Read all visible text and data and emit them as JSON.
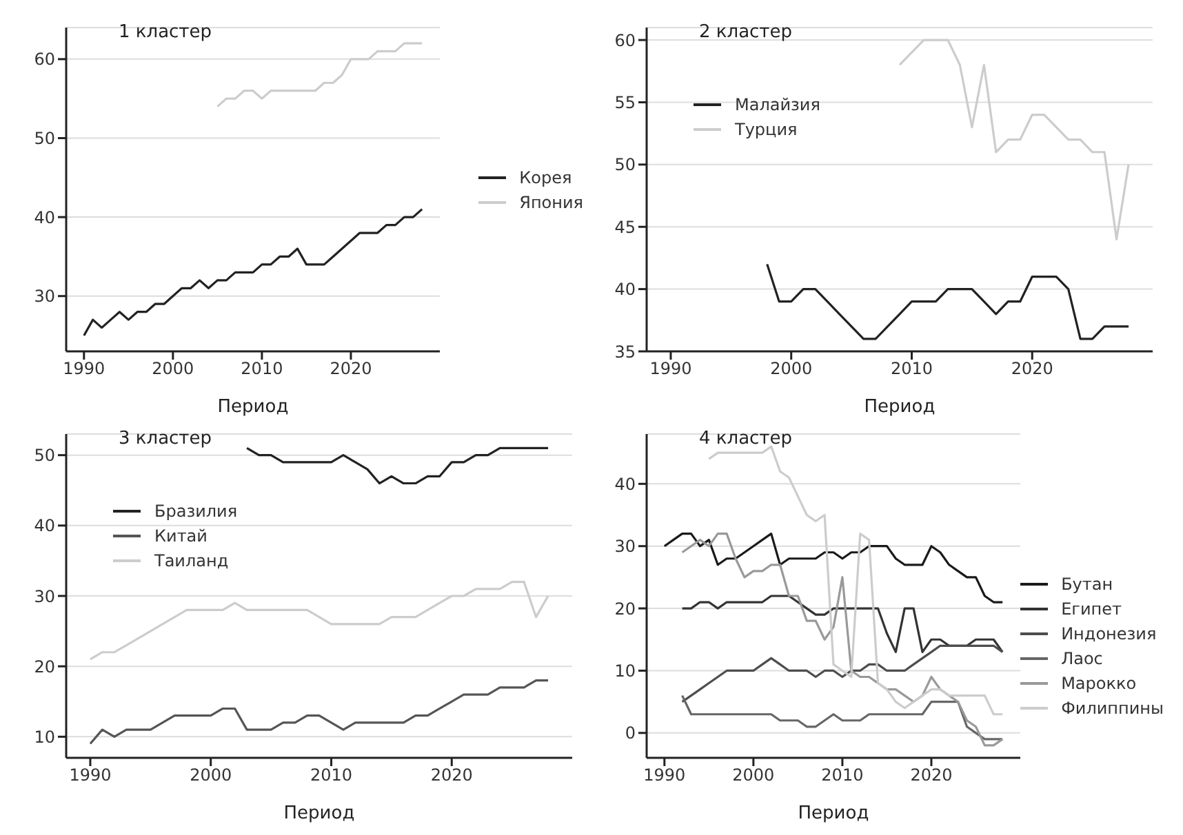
{
  "chart_data": [
    {
      "type": "line",
      "title": "1 кластер",
      "xlabel": "Период",
      "xlim": [
        1988,
        2030
      ],
      "xticks": [
        1990,
        2000,
        2010,
        2020
      ],
      "ylim": [
        23,
        64
      ],
      "yticks": [
        30,
        40,
        50,
        60
      ],
      "grid": "y",
      "legend": "right",
      "series": [
        {
          "name": "Корея",
          "color": "#222222",
          "x": [
            1990,
            1991,
            1992,
            1993,
            1994,
            1995,
            1996,
            1997,
            1998,
            1999,
            2000,
            2001,
            2002,
            2003,
            2004,
            2005,
            2006,
            2007,
            2008,
            2009,
            2010,
            2011,
            2012,
            2013,
            2014,
            2015,
            2016,
            2017,
            2018,
            2019,
            2020,
            2021,
            2022,
            2023,
            2024,
            2025,
            2026,
            2027,
            2028
          ],
          "values": [
            25,
            27,
            26,
            27,
            28,
            27,
            28,
            28,
            29,
            29,
            30,
            31,
            31,
            32,
            31,
            32,
            32,
            33,
            33,
            33,
            34,
            34,
            35,
            35,
            36,
            34,
            34,
            34,
            35,
            36,
            37,
            38,
            38,
            38,
            39,
            39,
            40,
            40,
            41
          ]
        },
        {
          "name": "Япония",
          "color": "#cccccc",
          "x": [
            2005,
            2006,
            2007,
            2008,
            2009,
            2010,
            2011,
            2012,
            2013,
            2014,
            2015,
            2016,
            2017,
            2018,
            2019,
            2020,
            2021,
            2022,
            2023,
            2024,
            2025,
            2026,
            2027,
            2028
          ],
          "values": [
            54,
            55,
            55,
            56,
            56,
            55,
            56,
            56,
            56,
            56,
            56,
            56,
            57,
            57,
            58,
            60,
            60,
            60,
            61,
            61,
            61,
            62,
            62,
            62
          ]
        }
      ]
    },
    {
      "type": "line",
      "title": "2 кластер",
      "xlabel": "Период",
      "xlim": [
        1988,
        2030
      ],
      "xticks": [
        1990,
        2000,
        2010,
        2020
      ],
      "ylim": [
        35,
        61
      ],
      "yticks": [
        35,
        40,
        45,
        50,
        55,
        60
      ],
      "grid": "y",
      "legend": "left",
      "series": [
        {
          "name": "Малайзия",
          "color": "#222222",
          "x": [
            1998,
            1999,
            2000,
            2001,
            2002,
            2003,
            2004,
            2005,
            2006,
            2007,
            2008,
            2009,
            2010,
            2011,
            2012,
            2013,
            2014,
            2015,
            2016,
            2017,
            2018,
            2019,
            2020,
            2021,
            2022,
            2023,
            2024,
            2025,
            2026,
            2027,
            2028
          ],
          "values": [
            42,
            39,
            39,
            40,
            40,
            39,
            38,
            37,
            36,
            36,
            37,
            38,
            39,
            39,
            39,
            40,
            40,
            40,
            39,
            38,
            39,
            39,
            41,
            41,
            41,
            40,
            36,
            36,
            37,
            37,
            37
          ]
        },
        {
          "name": "Турция",
          "color": "#cccccc",
          "x": [
            2009,
            2010,
            2011,
            2012,
            2013,
            2014,
            2015,
            2016,
            2017,
            2018,
            2019,
            2020,
            2021,
            2022,
            2023,
            2024,
            2025,
            2026,
            2027,
            2028
          ],
          "values": [
            58,
            59,
            60,
            60,
            60,
            58,
            53,
            58,
            51,
            52,
            52,
            54,
            54,
            53,
            52,
            52,
            51,
            51,
            44,
            50
          ]
        }
      ]
    },
    {
      "type": "line",
      "title": "3 кластер",
      "xlabel": "Период",
      "xlim": [
        1988,
        2030
      ],
      "xticks": [
        1990,
        2000,
        2010,
        2020
      ],
      "ylim": [
        7,
        53
      ],
      "yticks": [
        10,
        20,
        30,
        40,
        50
      ],
      "grid": "y",
      "legend": "left",
      "series": [
        {
          "name": "Бразилия",
          "color": "#222222",
          "x": [
            2003,
            2004,
            2005,
            2006,
            2007,
            2008,
            2009,
            2010,
            2011,
            2012,
            2013,
            2014,
            2015,
            2016,
            2017,
            2018,
            2019,
            2020,
            2021,
            2022,
            2023,
            2024,
            2025,
            2026,
            2027,
            2028
          ],
          "values": [
            51,
            50,
            50,
            49,
            49,
            49,
            49,
            49,
            50,
            49,
            48,
            46,
            47,
            46,
            46,
            47,
            47,
            49,
            49,
            50,
            50,
            51,
            51,
            51,
            51,
            51
          ]
        },
        {
          "name": "Китай",
          "color": "#555555",
          "x": [
            1990,
            1991,
            1992,
            1993,
            1994,
            1995,
            1996,
            1997,
            1998,
            1999,
            2000,
            2001,
            2002,
            2003,
            2004,
            2005,
            2006,
            2007,
            2008,
            2009,
            2010,
            2011,
            2012,
            2013,
            2014,
            2015,
            2016,
            2017,
            2018,
            2019,
            2020,
            2021,
            2022,
            2023,
            2024,
            2025,
            2026,
            2027,
            2028
          ],
          "values": [
            9,
            11,
            10,
            11,
            11,
            11,
            12,
            13,
            13,
            13,
            13,
            14,
            14,
            11,
            11,
            11,
            12,
            12,
            13,
            13,
            12,
            11,
            12,
            12,
            12,
            12,
            12,
            13,
            13,
            14,
            15,
            16,
            16,
            16,
            17,
            17,
            17,
            18,
            18
          ]
        },
        {
          "name": "Таиланд",
          "color": "#cccccc",
          "x": [
            1990,
            1991,
            1992,
            1993,
            1994,
            1995,
            1996,
            1997,
            1998,
            1999,
            2000,
            2001,
            2002,
            2003,
            2004,
            2005,
            2006,
            2007,
            2008,
            2009,
            2010,
            2011,
            2012,
            2013,
            2014,
            2015,
            2016,
            2017,
            2018,
            2019,
            2020,
            2021,
            2022,
            2023,
            2024,
            2025,
            2026,
            2027,
            2028
          ],
          "values": [
            21,
            22,
            22,
            23,
            24,
            25,
            26,
            27,
            28,
            28,
            28,
            28,
            29,
            28,
            28,
            28,
            28,
            28,
            28,
            27,
            26,
            26,
            26,
            26,
            26,
            27,
            27,
            27,
            28,
            29,
            30,
            30,
            31,
            31,
            31,
            32,
            32,
            27,
            30
          ]
        }
      ]
    },
    {
      "type": "line",
      "title": "4 кластер",
      "xlabel": "Период",
      "xlim": [
        1988,
        2030
      ],
      "xticks": [
        1990,
        2000,
        2010,
        2020
      ],
      "ylim": [
        -4,
        48
      ],
      "yticks": [
        0,
        10,
        20,
        30,
        40
      ],
      "grid": "y",
      "legend": "right",
      "series": [
        {
          "name": "Бутан",
          "color": "#1a1a1a",
          "x": [
            1990,
            1991,
            1992,
            1993,
            1994,
            1995,
            1996,
            1997,
            1998,
            1999,
            2000,
            2001,
            2002,
            2003,
            2004,
            2005,
            2006,
            2007,
            2008,
            2009,
            2010,
            2011,
            2012,
            2013,
            2014,
            2015,
            2016,
            2017,
            2018,
            2019,
            2020,
            2021,
            2022,
            2023,
            2024,
            2025,
            2026,
            2027,
            2028
          ],
          "values": [
            30,
            31,
            32,
            32,
            30,
            31,
            27,
            28,
            28,
            29,
            30,
            31,
            32,
            27,
            28,
            28,
            28,
            28,
            29,
            29,
            28,
            29,
            29,
            30,
            30,
            30,
            28,
            27,
            27,
            27,
            30,
            29,
            27,
            26,
            25,
            25,
            22,
            21,
            21
          ]
        },
        {
          "name": "Египет",
          "color": "#333333",
          "x": [
            1992,
            1993,
            1994,
            1995,
            1996,
            1997,
            1998,
            1999,
            2000,
            2001,
            2002,
            2003,
            2004,
            2005,
            2006,
            2007,
            2008,
            2009,
            2010,
            2011,
            2012,
            2013,
            2014,
            2015,
            2016,
            2017,
            2018,
            2019,
            2020,
            2021,
            2022,
            2023,
            2024,
            2025,
            2026,
            2027,
            2028
          ],
          "values": [
            20,
            20,
            21,
            21,
            20,
            21,
            21,
            21,
            21,
            21,
            22,
            22,
            22,
            21,
            20,
            19,
            19,
            20,
            20,
            20,
            20,
            20,
            20,
            16,
            13,
            20,
            20,
            13,
            15,
            15,
            14,
            14,
            14,
            15,
            15,
            15,
            13
          ]
        },
        {
          "name": "Индонезия",
          "color": "#4d4d4d",
          "x": [
            1992,
            1993,
            1994,
            1995,
            1996,
            1997,
            1998,
            1999,
            2000,
            2001,
            2002,
            2003,
            2004,
            2005,
            2006,
            2007,
            2008,
            2009,
            2010,
            2011,
            2012,
            2013,
            2014,
            2015,
            2016,
            2017,
            2018,
            2019,
            2020,
            2021,
            2022,
            2023,
            2024,
            2025,
            2026,
            2027,
            2028
          ],
          "values": [
            5,
            6,
            7,
            8,
            9,
            10,
            10,
            10,
            10,
            11,
            12,
            11,
            10,
            10,
            10,
            9,
            10,
            10,
            9,
            10,
            10,
            11,
            11,
            10,
            10,
            10,
            11,
            12,
            13,
            14,
            14,
            14,
            14,
            14,
            14,
            14,
            13
          ]
        },
        {
          "name": "Лаос",
          "color": "#666666",
          "x": [
            1992,
            1993,
            1994,
            1995,
            1996,
            1997,
            1998,
            1999,
            2000,
            2001,
            2002,
            2003,
            2004,
            2005,
            2006,
            2007,
            2008,
            2009,
            2010,
            2011,
            2012,
            2013,
            2014,
            2015,
            2016,
            2017,
            2018,
            2019,
            2020,
            2021,
            2022,
            2023,
            2024,
            2025,
            2026,
            2027,
            2028
          ],
          "values": [
            6,
            3,
            3,
            3,
            3,
            3,
            3,
            3,
            3,
            3,
            3,
            2,
            2,
            2,
            1,
            1,
            2,
            3,
            2,
            2,
            2,
            3,
            3,
            3,
            3,
            3,
            3,
            3,
            5,
            5,
            5,
            5,
            1,
            0,
            -1,
            -1,
            -1
          ]
        },
        {
          "name": "Марокко",
          "color": "#999999",
          "x": [
            1992,
            1993,
            1994,
            1995,
            1996,
            1997,
            1998,
            1999,
            2000,
            2001,
            2002,
            2003,
            2004,
            2005,
            2006,
            2007,
            2008,
            2009,
            2010,
            2011,
            2012,
            2013,
            2014,
            2015,
            2016,
            2017,
            2018,
            2019,
            2020,
            2021,
            2022,
            2023,
            2024,
            2025,
            2026,
            2027,
            2028
          ],
          "values": [
            29,
            30,
            31,
            30,
            32,
            32,
            28,
            25,
            26,
            26,
            27,
            27,
            22,
            22,
            18,
            18,
            15,
            17,
            25,
            10,
            9,
            9,
            8,
            7,
            7,
            6,
            5,
            6,
            9,
            7,
            6,
            5,
            2,
            1,
            -2,
            -2,
            -1
          ]
        },
        {
          "name": "Филиппины",
          "color": "#cccccc",
          "x": [
            1995,
            1996,
            1997,
            1998,
            1999,
            2000,
            2001,
            2002,
            2003,
            2004,
            2005,
            2006,
            2007,
            2008,
            2009,
            2010,
            2011,
            2012,
            2013,
            2014,
            2015,
            2016,
            2017,
            2018,
            2019,
            2020,
            2021,
            2022,
            2023,
            2024,
            2025,
            2026,
            2027,
            2028
          ],
          "values": [
            44,
            45,
            45,
            45,
            45,
            45,
            45,
            46,
            42,
            41,
            38,
            35,
            34,
            35,
            11,
            10,
            9,
            32,
            31,
            8,
            7,
            5,
            4,
            5,
            6,
            7,
            7,
            6,
            6,
            6,
            6,
            6,
            3,
            3
          ]
        }
      ]
    }
  ]
}
